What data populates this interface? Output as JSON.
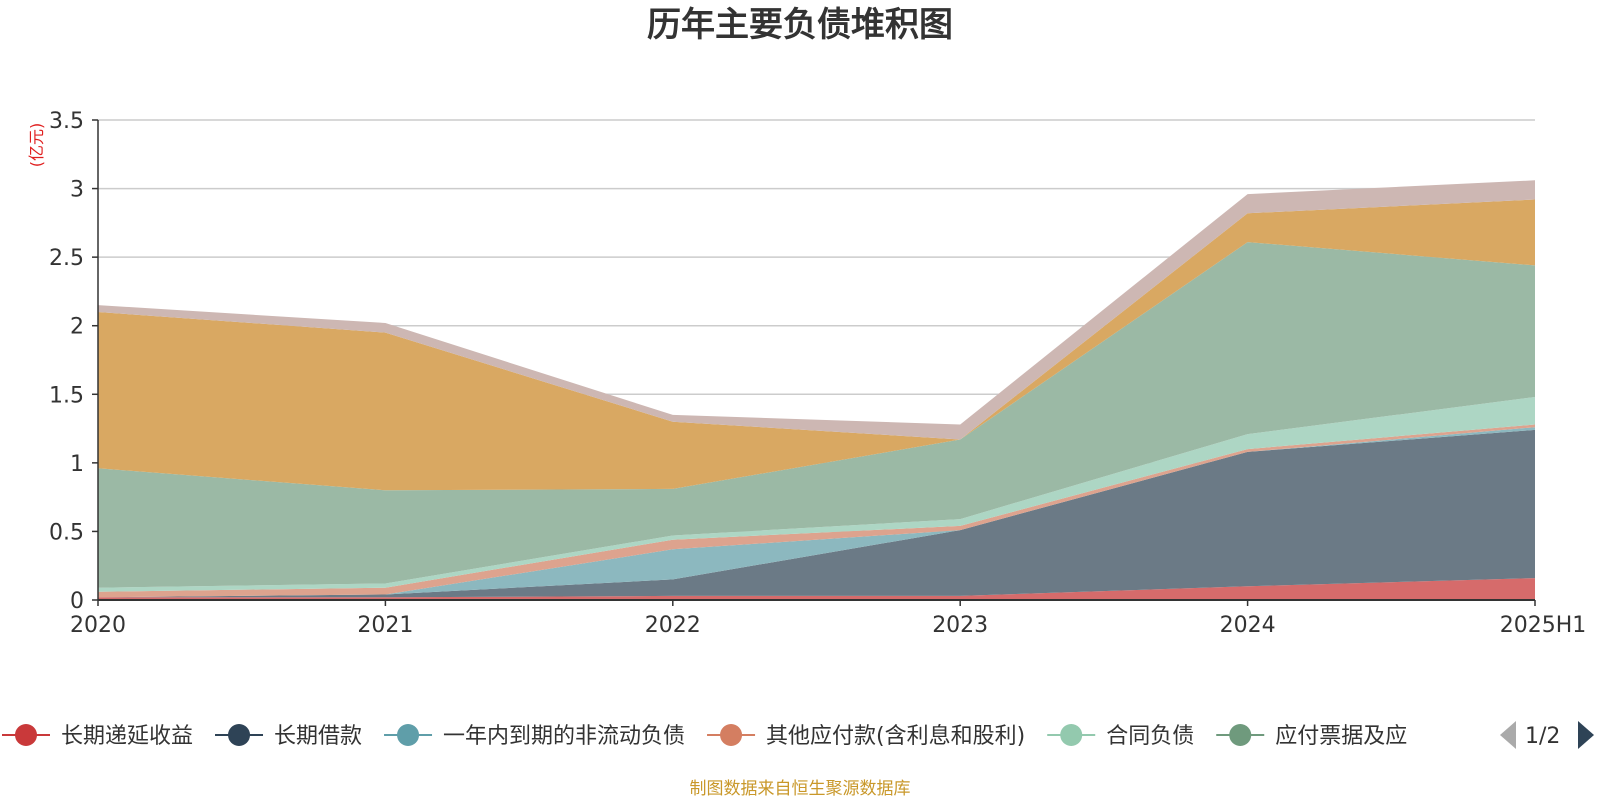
{
  "chart_data": {
    "type": "area",
    "stacked": true,
    "title": "历年主要负债堆积图",
    "unit_label": "(亿元)",
    "x": [
      "2020",
      "2021",
      "2022",
      "2023",
      "2024",
      "2025H1"
    ],
    "ylim": [
      0,
      3.5
    ],
    "y_ticks": [
      "0",
      "0.5",
      "1",
      "1.5",
      "2",
      "2.5",
      "3",
      "3.5"
    ],
    "grid": true,
    "legend_position": "bottom",
    "series": [
      {
        "name": "长期递延收益",
        "color": "#d66b6b",
        "values": [
          0.02,
          0.02,
          0.03,
          0.03,
          0.1,
          0.16
        ]
      },
      {
        "name": "长期借款",
        "color": "#6b7a86",
        "values": [
          0.0,
          0.02,
          0.12,
          0.48,
          0.98,
          1.08
        ]
      },
      {
        "name": "一年内到期的非流动负债",
        "color": "#8cb8bf",
        "values": [
          0.0,
          0.0,
          0.22,
          0.0,
          0.0,
          0.02
        ]
      },
      {
        "name": "其他应付款(含利息和股利)",
        "color": "#dda38e",
        "values": [
          0.04,
          0.05,
          0.07,
          0.03,
          0.02,
          0.02
        ]
      },
      {
        "name": "合同负债",
        "color": "#add6c4",
        "values": [
          0.03,
          0.03,
          0.03,
          0.05,
          0.11,
          0.2
        ]
      },
      {
        "name": "应付票据及应付账款",
        "color": "#9bb9a5",
        "values": [
          0.87,
          0.68,
          0.34,
          0.58,
          1.4,
          0.96
        ]
      },
      {
        "name": "",
        "color": "#d9a862",
        "values": [
          1.14,
          1.15,
          0.49,
          0.0,
          0.21,
          0.48
        ]
      },
      {
        "name": "",
        "color": "#cdb7b3",
        "values": [
          0.05,
          0.07,
          0.05,
          0.11,
          0.14,
          0.14
        ]
      }
    ]
  },
  "legend": {
    "items": [
      {
        "label": "长期递延收益",
        "color": "#c9393a"
      },
      {
        "label": "长期借款",
        "color": "#2e4356"
      },
      {
        "label": "一年内到期的非流动负债",
        "color": "#5f9ea9"
      },
      {
        "label": "其他应付款(含利息和股利)",
        "color": "#d47e61"
      },
      {
        "label": "合同负债",
        "color": "#93c9ae"
      },
      {
        "label": "应付票据及应",
        "color": "#6f9a7d"
      }
    ],
    "page": "1/2",
    "prev_color": "#aaaaaa",
    "next_color": "#2e4356"
  },
  "source_text": "制图数据来自恒生聚源数据库"
}
